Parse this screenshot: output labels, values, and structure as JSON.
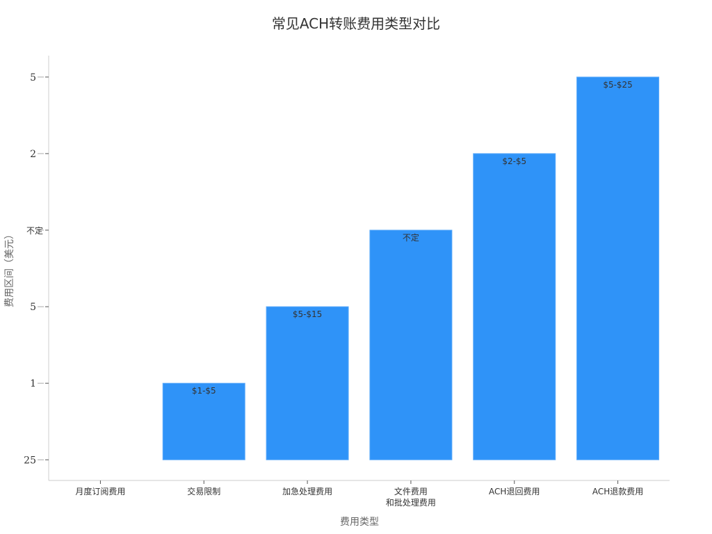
{
  "chart_data": {
    "type": "bar",
    "title": "常见ACH转账费用类型对比",
    "xlabel": "费用类型",
    "ylabel": "费用区间（美元）",
    "categories": [
      "月度订阅费用",
      "交易限制",
      "加急处理费用",
      "文件费用\n和批处理费用",
      "ACH退回费用",
      "ACH退款费用"
    ],
    "values": [
      0,
      1,
      2,
      3,
      4,
      5
    ],
    "data_labels": [
      "",
      "$1-$5",
      "$5-$15",
      "不定",
      "$2-$5",
      "$5-$25"
    ],
    "y_tick_values": [
      0,
      1,
      2,
      3,
      4,
      5
    ],
    "y_tick_labels": [
      "25",
      "1",
      "5",
      "不定",
      "2",
      "5"
    ],
    "ylim": [
      -0.27,
      5.28
    ],
    "grid": false,
    "colors": {
      "bar": "#2f93f8",
      "bar_edge": "#5aa9fa",
      "axis": "#cccccc",
      "text": "#333333"
    }
  }
}
